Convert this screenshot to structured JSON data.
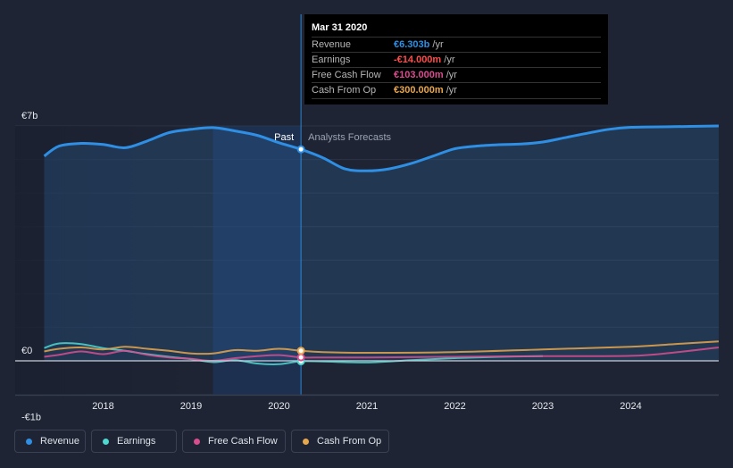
{
  "tooltip": {
    "date": "Mar 31 2020",
    "rows": [
      {
        "label": "Revenue",
        "value": "€6.303b",
        "unit": " /yr",
        "color": "#2e8fe5"
      },
      {
        "label": "Earnings",
        "value": "-€14.000m",
        "unit": " /yr",
        "color": "#ff4d4d"
      },
      {
        "label": "Free Cash Flow",
        "value": "€103.000m",
        "unit": " /yr",
        "color": "#d94d8f"
      },
      {
        "label": "Cash From Op",
        "value": "€300.000m",
        "unit": " /yr",
        "color": "#e8a74d"
      }
    ]
  },
  "legend": [
    {
      "label": "Revenue",
      "color": "#2e8fe5"
    },
    {
      "label": "Earnings",
      "color": "#4fd8d0"
    },
    {
      "label": "Free Cash Flow",
      "color": "#d94d8f"
    },
    {
      "label": "Cash From Op",
      "color": "#e8a74d"
    }
  ],
  "chart_data": {
    "type": "line",
    "units": "€b",
    "ylim": [
      -1,
      7
    ],
    "y_tick_labels": [
      {
        "value": 7,
        "label": "€7b"
      },
      {
        "value": 0,
        "label": "€0"
      },
      {
        "value": -1,
        "label": "-€1b"
      }
    ],
    "xlim": [
      2017.0,
      2025.0
    ],
    "x_ticks": [
      2018,
      2019,
      2020,
      2021,
      2022,
      2023,
      2024
    ],
    "divider_x": 2020.25,
    "past_label": "Past",
    "forecast_label": "Analysts Forecasts",
    "series": [
      {
        "name": "Revenue",
        "color": "#2e8fe5",
        "width": 3,
        "points": [
          [
            2017.33,
            6.1
          ],
          [
            2017.5,
            6.4
          ],
          [
            2017.75,
            6.48
          ],
          [
            2018.0,
            6.45
          ],
          [
            2018.25,
            6.35
          ],
          [
            2018.5,
            6.55
          ],
          [
            2018.75,
            6.8
          ],
          [
            2019.0,
            6.9
          ],
          [
            2019.25,
            6.95
          ],
          [
            2019.5,
            6.85
          ],
          [
            2019.75,
            6.72
          ],
          [
            2020.0,
            6.5
          ],
          [
            2020.25,
            6.303
          ],
          [
            2020.5,
            6.05
          ],
          [
            2020.75,
            5.72
          ],
          [
            2021.0,
            5.66
          ],
          [
            2021.25,
            5.72
          ],
          [
            2021.5,
            5.88
          ],
          [
            2021.75,
            6.1
          ],
          [
            2022.0,
            6.32
          ],
          [
            2022.25,
            6.4
          ],
          [
            2022.5,
            6.44
          ],
          [
            2022.75,
            6.46
          ],
          [
            2023.0,
            6.52
          ],
          [
            2023.25,
            6.65
          ],
          [
            2023.5,
            6.78
          ],
          [
            2023.75,
            6.9
          ],
          [
            2024.0,
            6.96
          ],
          [
            2024.5,
            6.98
          ],
          [
            2025.0,
            7.0
          ]
        ]
      },
      {
        "name": "Earnings",
        "color": "#4fd8d0",
        "width": 2,
        "points": [
          [
            2017.33,
            0.38
          ],
          [
            2017.5,
            0.52
          ],
          [
            2017.75,
            0.5
          ],
          [
            2018.0,
            0.38
          ],
          [
            2018.25,
            0.3
          ],
          [
            2018.5,
            0.2
          ],
          [
            2018.75,
            0.12
          ],
          [
            2019.0,
            0.05
          ],
          [
            2019.25,
            -0.04
          ],
          [
            2019.5,
            0.02
          ],
          [
            2019.75,
            -0.08
          ],
          [
            2020.0,
            -0.1
          ],
          [
            2020.25,
            -0.014
          ],
          [
            2020.5,
            -0.02
          ],
          [
            2021.0,
            -0.05
          ],
          [
            2021.5,
            0.02
          ],
          [
            2022.0,
            0.08
          ],
          [
            2022.5,
            0.12
          ],
          [
            2023.0,
            0.14
          ]
        ]
      },
      {
        "name": "Free Cash Flow",
        "color": "#d94d8f",
        "width": 2,
        "points": [
          [
            2017.33,
            0.12
          ],
          [
            2017.5,
            0.18
          ],
          [
            2017.75,
            0.28
          ],
          [
            2018.0,
            0.2
          ],
          [
            2018.25,
            0.3
          ],
          [
            2018.5,
            0.18
          ],
          [
            2018.75,
            0.1
          ],
          [
            2019.0,
            0.06
          ],
          [
            2019.25,
            0.0
          ],
          [
            2019.5,
            0.08
          ],
          [
            2019.75,
            0.14
          ],
          [
            2020.0,
            0.17
          ],
          [
            2020.25,
            0.103
          ],
          [
            2020.5,
            0.1
          ],
          [
            2021.0,
            0.1
          ],
          [
            2022.0,
            0.12
          ],
          [
            2023.0,
            0.14
          ],
          [
            2024.0,
            0.15
          ],
          [
            2024.5,
            0.25
          ],
          [
            2025.0,
            0.4
          ]
        ]
      },
      {
        "name": "Cash From Op",
        "color": "#e8a74d",
        "width": 2,
        "points": [
          [
            2017.33,
            0.28
          ],
          [
            2017.5,
            0.36
          ],
          [
            2017.75,
            0.4
          ],
          [
            2018.0,
            0.34
          ],
          [
            2018.25,
            0.42
          ],
          [
            2018.5,
            0.36
          ],
          [
            2018.75,
            0.3
          ],
          [
            2019.0,
            0.22
          ],
          [
            2019.25,
            0.22
          ],
          [
            2019.5,
            0.32
          ],
          [
            2019.75,
            0.3
          ],
          [
            2020.0,
            0.36
          ],
          [
            2020.25,
            0.3
          ],
          [
            2020.5,
            0.26
          ],
          [
            2021.0,
            0.24
          ],
          [
            2022.0,
            0.26
          ],
          [
            2023.0,
            0.34
          ],
          [
            2024.0,
            0.42
          ],
          [
            2024.5,
            0.5
          ],
          [
            2025.0,
            0.58
          ]
        ]
      }
    ]
  }
}
